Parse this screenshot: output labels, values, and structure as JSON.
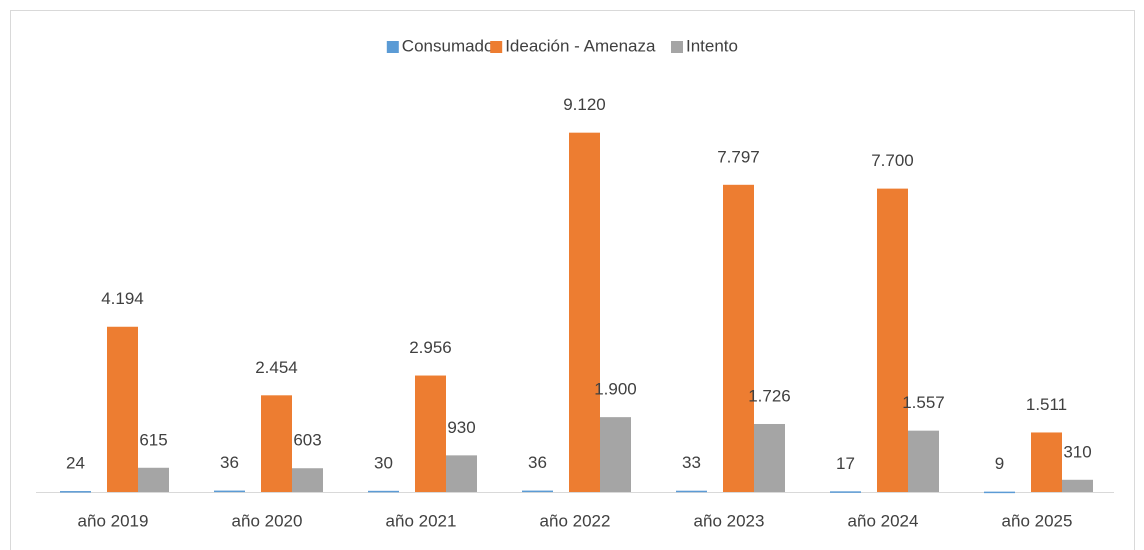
{
  "chart_data": {
    "type": "bar",
    "categories": [
      "año 2019",
      "año 2020",
      "año 2021",
      "año 2022",
      "año 2023",
      "año 2024",
      "año 2025"
    ],
    "series": [
      {
        "name": "Consumado",
        "color": "#5b9bd5",
        "values": [
          24,
          36,
          30,
          36,
          33,
          17,
          9
        ],
        "value_labels": [
          "24",
          "36",
          "30",
          "36",
          "33",
          "17",
          "9"
        ]
      },
      {
        "name": "Ideación - Amenaza",
        "color": "#ed7d31",
        "values": [
          4194,
          2454,
          2956,
          9120,
          7797,
          7700,
          1511
        ],
        "value_labels": [
          "4.194",
          "2.454",
          "2.956",
          "9.120",
          "7.797",
          "7.700",
          "1.511"
        ]
      },
      {
        "name": "Intento",
        "color": "#a5a5a5",
        "values": [
          615,
          603,
          930,
          1900,
          1726,
          1557,
          310
        ],
        "value_labels": [
          "615",
          "603",
          "930",
          "1.900",
          "1.726",
          "1.557",
          "310"
        ]
      }
    ],
    "ylim": [
      0,
      10000
    ],
    "legend": "top"
  }
}
